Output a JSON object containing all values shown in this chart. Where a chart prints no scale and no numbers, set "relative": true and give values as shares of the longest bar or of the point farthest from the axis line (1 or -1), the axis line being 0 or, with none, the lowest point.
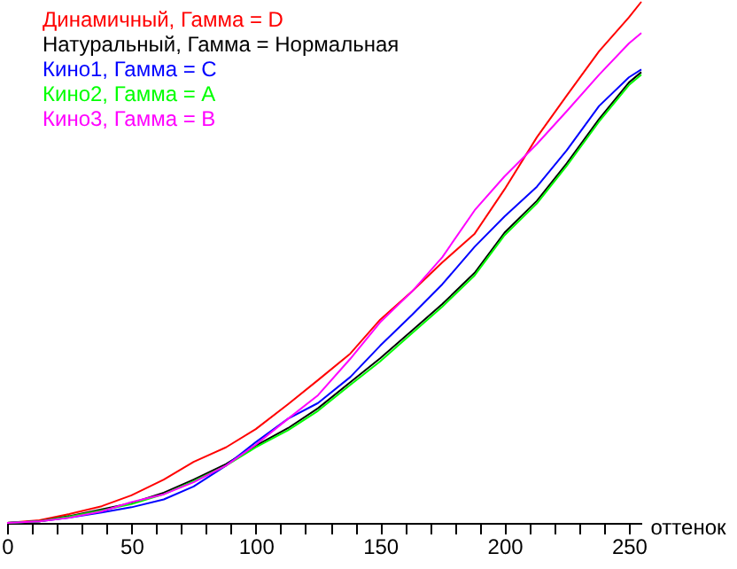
{
  "chart_data": {
    "type": "line",
    "relative": true,
    "xlabel": "оттенок",
    "legend": "top left",
    "grid": false,
    "x": [
      0,
      13,
      25,
      38,
      50,
      63,
      75,
      88,
      100,
      113,
      125,
      138,
      150,
      163,
      175,
      188,
      200,
      213,
      225,
      238,
      250,
      255
    ],
    "xlim": [
      0,
      255
    ],
    "xticks": [
      0,
      {
        "value": 10,
        "label": null
      },
      {
        "value": 20,
        "label": null
      },
      {
        "value": 30,
        "label": null
      },
      {
        "value": 40,
        "label": null
      },
      50,
      {
        "value": 60,
        "label": null
      },
      {
        "value": 70,
        "label": null
      },
      {
        "value": 80,
        "label": null
      },
      {
        "value": 90,
        "label": null
      },
      100,
      {
        "value": 110,
        "label": null
      },
      {
        "value": 120,
        "label": null
      },
      {
        "value": 130,
        "label": null
      },
      {
        "value": 140,
        "label": null
      },
      150,
      {
        "value": 160,
        "label": null
      },
      {
        "value": 170,
        "label": null
      },
      {
        "value": 180,
        "label": null
      },
      {
        "value": 190,
        "label": null
      },
      200,
      {
        "value": 210,
        "label": null
      },
      {
        "value": 220,
        "label": null
      },
      {
        "value": 230,
        "label": null
      },
      {
        "value": 240,
        "label": null
      },
      250
    ],
    "series": [
      {
        "name": "Динамичный, Гамма = D",
        "color": "#ff0000",
        "values": [
          0,
          0.005,
          0.017,
          0.032,
          0.053,
          0.083,
          0.117,
          0.145,
          0.18,
          0.228,
          0.274,
          0.325,
          0.39,
          0.445,
          0.5,
          0.555,
          0.64,
          0.74,
          0.82,
          0.905,
          0.97,
          1
        ]
      },
      {
        "name": "Натуральный, Гамма = Нормальная",
        "color": "#000000",
        "values": [
          0,
          0.003,
          0.013,
          0.026,
          0.038,
          0.058,
          0.083,
          0.113,
          0.148,
          0.182,
          0.22,
          0.27,
          0.316,
          0.37,
          0.42,
          0.48,
          0.557,
          0.618,
          0.69,
          0.775,
          0.845,
          0.865
        ]
      },
      {
        "name": "Кино1, Гамма = C",
        "color": "#0000ff",
        "values": [
          0,
          0.003,
          0.01,
          0.02,
          0.03,
          0.045,
          0.07,
          0.11,
          0.155,
          0.2,
          0.23,
          0.28,
          0.34,
          0.4,
          0.458,
          0.53,
          0.588,
          0.645,
          0.715,
          0.8,
          0.855,
          0.87
        ]
      },
      {
        "name": "Кино2, Гамма = A",
        "color": "#00ff00",
        "values": [
          0,
          0.003,
          0.012,
          0.024,
          0.036,
          0.055,
          0.08,
          0.11,
          0.145,
          0.178,
          0.215,
          0.265,
          0.31,
          0.365,
          0.415,
          0.475,
          0.552,
          0.613,
          0.685,
          0.77,
          0.84,
          0.86
        ]
      },
      {
        "name": "Кино3, Гамма = B",
        "color": "#ff00ff",
        "values": [
          0,
          0.003,
          0.01,
          0.022,
          0.04,
          0.055,
          0.078,
          0.11,
          0.15,
          0.2,
          0.245,
          0.315,
          0.385,
          0.445,
          0.51,
          0.6,
          0.665,
          0.727,
          0.79,
          0.86,
          0.92,
          0.94
        ]
      }
    ]
  }
}
